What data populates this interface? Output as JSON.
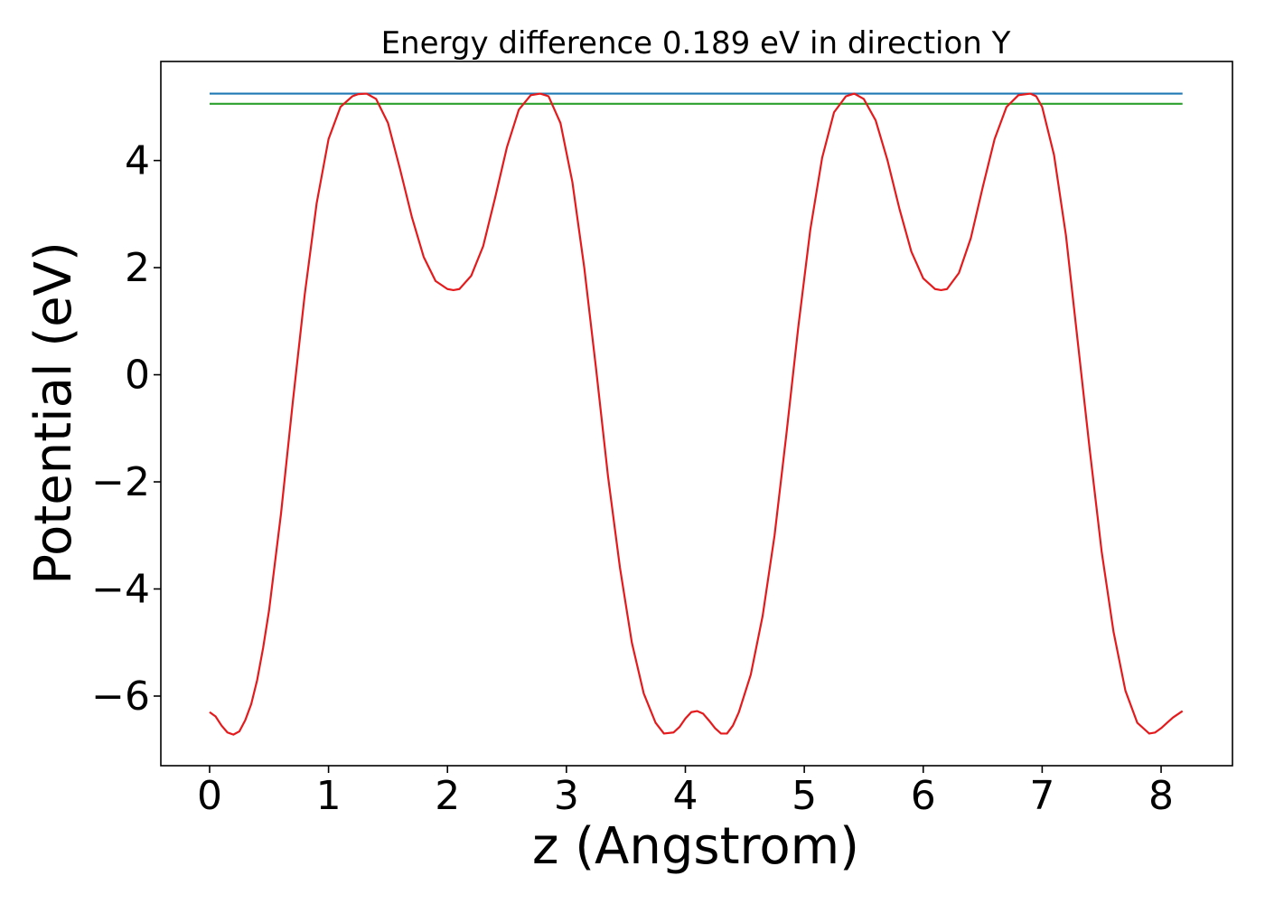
{
  "chart_data": {
    "type": "line",
    "title": "Energy difference 0.189 eV in direction Y",
    "xlabel": "z (Angstrom)",
    "ylabel": "Potential (eV)",
    "xlim": [
      -0.41,
      8.6
    ],
    "ylim": [
      -7.3,
      5.85
    ],
    "xticks": [
      0,
      1,
      2,
      3,
      4,
      5,
      6,
      7,
      8
    ],
    "xtick_labels": [
      "0",
      "1",
      "2",
      "3",
      "4",
      "5",
      "6",
      "7",
      "8"
    ],
    "yticks": [
      -6,
      -4,
      -2,
      0,
      2,
      4
    ],
    "ytick_labels": [
      "−6",
      "−4",
      "−2",
      "0",
      "2",
      "4"
    ],
    "grid": false,
    "legend": "none",
    "series": [
      {
        "color": "#1f77b4",
        "style": "horizontal",
        "x": [
          0,
          8.18
        ],
        "y": [
          5.25,
          5.25
        ]
      },
      {
        "color": "#2ca02c",
        "style": "horizontal",
        "x": [
          0,
          8.18
        ],
        "y": [
          5.06,
          5.06
        ]
      },
      {
        "color": "#e41a1c",
        "style": "curve",
        "x": [
          0,
          0.05,
          0.1,
          0.15,
          0.2,
          0.25,
          0.3,
          0.35,
          0.4,
          0.45,
          0.5,
          0.6,
          0.7,
          0.8,
          0.9,
          1.0,
          1.1,
          1.2,
          1.25,
          1.32,
          1.4,
          1.5,
          1.6,
          1.7,
          1.8,
          1.9,
          2.0,
          2.05,
          2.1,
          2.2,
          2.3,
          2.4,
          2.5,
          2.6,
          2.7,
          2.78,
          2.85,
          2.95,
          3.05,
          3.15,
          3.25,
          3.35,
          3.45,
          3.55,
          3.65,
          3.75,
          3.82,
          3.9,
          3.95,
          4.0,
          4.05,
          4.1,
          4.15,
          4.2,
          4.25,
          4.3,
          4.35,
          4.4,
          4.45,
          4.55,
          4.65,
          4.75,
          4.85,
          4.95,
          5.05,
          5.15,
          5.25,
          5.35,
          5.42,
          5.5,
          5.6,
          5.7,
          5.8,
          5.9,
          6.0,
          6.1,
          6.15,
          6.2,
          6.3,
          6.4,
          6.5,
          6.6,
          6.7,
          6.8,
          6.9,
          6.95,
          7.0,
          7.1,
          7.2,
          7.3,
          7.4,
          7.5,
          7.6,
          7.7,
          7.8,
          7.9,
          7.95,
          8.0,
          8.05,
          8.1,
          8.18
        ],
        "y": [
          -6.3,
          -6.38,
          -6.55,
          -6.68,
          -6.72,
          -6.66,
          -6.45,
          -6.15,
          -5.7,
          -5.1,
          -4.4,
          -2.6,
          -0.5,
          1.5,
          3.2,
          4.4,
          5.0,
          5.2,
          5.24,
          5.25,
          5.15,
          4.7,
          3.85,
          2.95,
          2.2,
          1.75,
          1.6,
          1.58,
          1.6,
          1.85,
          2.4,
          3.3,
          4.25,
          4.95,
          5.22,
          5.25,
          5.2,
          4.7,
          3.6,
          2.0,
          0.1,
          -1.9,
          -3.6,
          -5.0,
          -5.95,
          -6.5,
          -6.7,
          -6.68,
          -6.58,
          -6.42,
          -6.3,
          -6.28,
          -6.33,
          -6.46,
          -6.6,
          -6.7,
          -6.7,
          -6.55,
          -6.3,
          -5.6,
          -4.5,
          -3.0,
          -1.1,
          0.9,
          2.7,
          4.05,
          4.9,
          5.2,
          5.25,
          5.15,
          4.75,
          4.0,
          3.1,
          2.3,
          1.8,
          1.6,
          1.58,
          1.6,
          1.9,
          2.55,
          3.5,
          4.4,
          5.0,
          5.22,
          5.25,
          5.2,
          5.0,
          4.1,
          2.6,
          0.6,
          -1.4,
          -3.3,
          -4.8,
          -5.9,
          -6.5,
          -6.7,
          -6.68,
          -6.6,
          -6.5,
          -6.4,
          -6.28
        ]
      }
    ]
  }
}
